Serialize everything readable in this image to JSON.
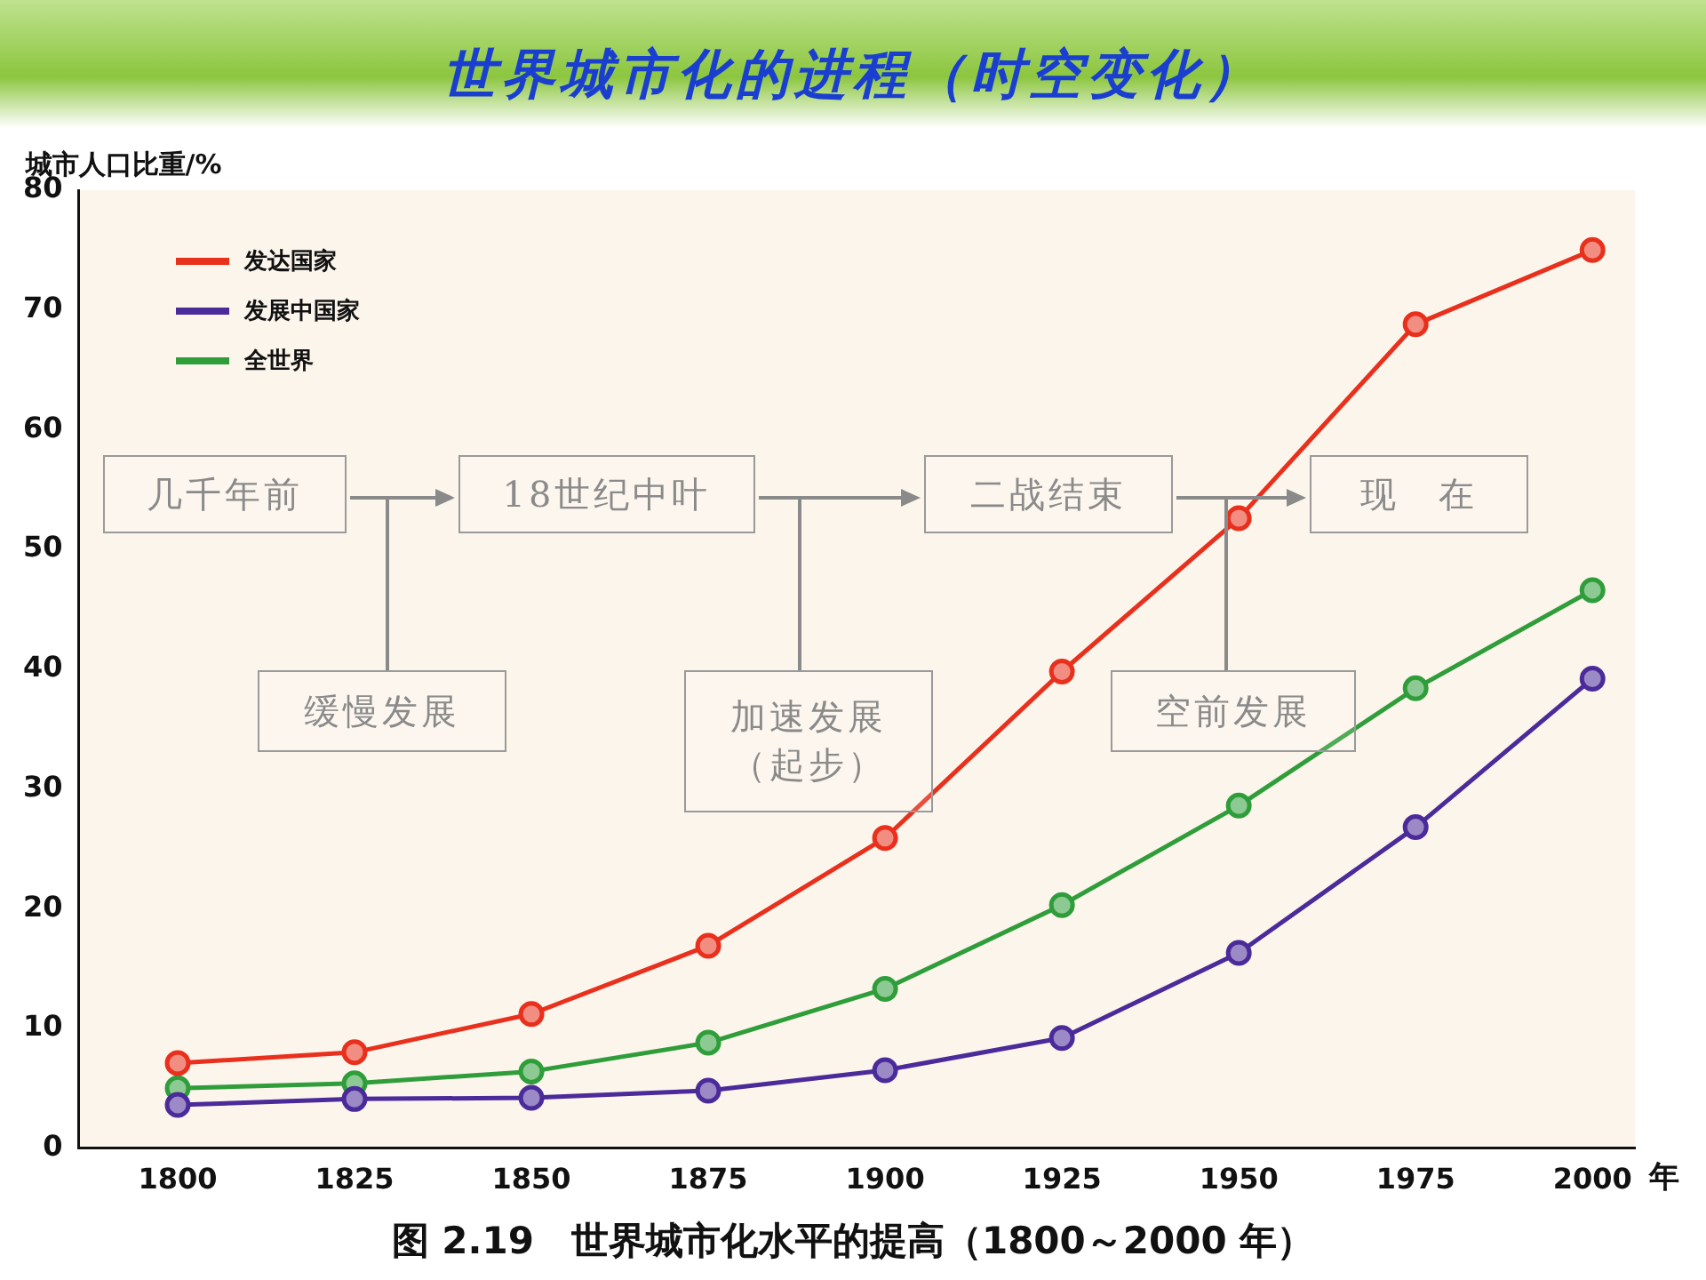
{
  "chart_data": {
    "type": "line",
    "title": "世界城市化的进程（时空变化）",
    "ylabel": "城市人口比重/%",
    "xlabel": "年",
    "x": [
      1800,
      1825,
      1850,
      1875,
      1900,
      1925,
      1950,
      1975,
      2000
    ],
    "series": [
      {
        "name": "发达国家",
        "color": "#e8301c",
        "values": [
          7.1,
          8.0,
          11.2,
          16.9,
          25.9,
          39.8,
          52.6,
          68.8,
          75.0
        ]
      },
      {
        "name": "发展中国家",
        "color": "#4b2a9a",
        "values": [
          3.6,
          4.1,
          4.2,
          4.8,
          6.5,
          9.2,
          16.3,
          26.8,
          39.2
        ]
      },
      {
        "name": "全世界",
        "color": "#2f9e3a",
        "values": [
          5.0,
          5.4,
          6.4,
          8.8,
          13.3,
          20.3,
          28.6,
          38.4,
          46.6
        ]
      }
    ],
    "xlim": [
      1786,
      2006
    ],
    "xticks": [
      1800,
      1825,
      1850,
      1875,
      1900,
      1925,
      1950,
      1975,
      2000
    ],
    "ylim": [
      0,
      80
    ],
    "yticks": [
      0,
      10,
      20,
      30,
      40,
      50,
      60,
      70,
      80
    ],
    "grid": false,
    "legend": "top left",
    "marker": "circle",
    "line_style": "solid",
    "annotations": [
      "几千年前",
      "18世纪中叶",
      "二战结束",
      "现　在",
      "缓慢发展",
      "加速发展（起步）",
      "空前发展",
      "图 2.19　世界城市化水平的提高（1800～2000 年）"
    ]
  }
}
